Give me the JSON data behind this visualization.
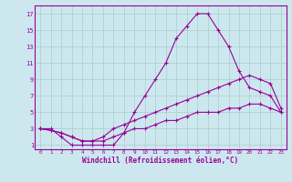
{
  "xlabel": "Windchill (Refroidissement éolien,°C)",
  "background_color": "#cce8ee",
  "line_color": "#990099",
  "grid_color": "#aacccc",
  "xlim": [
    -0.5,
    23.5
  ],
  "ylim": [
    0.5,
    18
  ],
  "xticks": [
    0,
    1,
    2,
    3,
    4,
    5,
    6,
    7,
    8,
    9,
    10,
    11,
    12,
    13,
    14,
    15,
    16,
    17,
    18,
    19,
    20,
    21,
    22,
    23
  ],
  "yticks": [
    1,
    3,
    5,
    7,
    9,
    11,
    13,
    15,
    17
  ],
  "series": [
    {
      "x": [
        0,
        1,
        2,
        3,
        4,
        5,
        6,
        7,
        8,
        9,
        10,
        11,
        12,
        13,
        14,
        15,
        16,
        17,
        18,
        19,
        20,
        21,
        22,
        23
      ],
      "y": [
        3,
        3,
        2,
        1,
        1,
        1,
        1,
        1,
        2.5,
        5,
        7,
        9,
        11,
        14,
        15.5,
        17,
        17,
        15,
        13,
        10,
        8,
        7.5,
        7,
        5
      ]
    },
    {
      "x": [
        0,
        1,
        2,
        3,
        4,
        5,
        6,
        7,
        8,
        9,
        10,
        11,
        12,
        13,
        14,
        15,
        16,
        17,
        18,
        19,
        20,
        21,
        22,
        23
      ],
      "y": [
        3,
        2.8,
        2.5,
        2,
        1.5,
        1.5,
        2,
        3,
        3.5,
        4,
        4.5,
        5,
        5.5,
        6,
        6.5,
        7,
        7.5,
        8,
        8.5,
        9,
        9.5,
        9,
        8.5,
        5.5
      ]
    },
    {
      "x": [
        0,
        1,
        2,
        3,
        4,
        5,
        6,
        7,
        8,
        9,
        10,
        11,
        12,
        13,
        14,
        15,
        16,
        17,
        18,
        19,
        20,
        21,
        22,
        23
      ],
      "y": [
        3,
        2.8,
        2.5,
        2,
        1.5,
        1.5,
        1.5,
        2,
        2.5,
        3,
        3,
        3.5,
        4,
        4,
        4.5,
        5,
        5,
        5,
        5.5,
        5.5,
        6,
        6,
        5.5,
        5
      ]
    }
  ]
}
